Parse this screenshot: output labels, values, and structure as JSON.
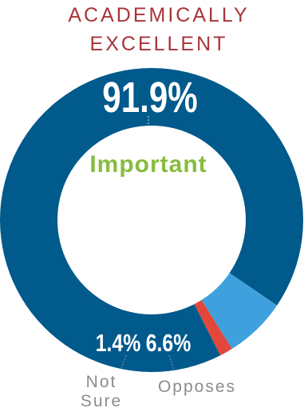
{
  "chart_data": {
    "type": "pie",
    "variant": "donut",
    "title_lines": [
      "ACADEMICALLY",
      "EXCELLENT"
    ],
    "categories": [
      "Important",
      "Opposes",
      "Not Sure"
    ],
    "values": [
      91.9,
      6.6,
      1.4
    ],
    "value_labels": [
      "91.9%",
      "6.6%",
      "1.4%"
    ],
    "category_label_lines": {
      "Important": [
        "Important"
      ],
      "Opposes": [
        "Opposes"
      ],
      "Not Sure": [
        "Not",
        "Sure"
      ]
    },
    "colors": {
      "Important": "#005a8c",
      "Opposes": "#3ea1dd",
      "Not Sure": "#e2473b",
      "center_label": "#86bc3f",
      "title": "#a83438"
    }
  }
}
